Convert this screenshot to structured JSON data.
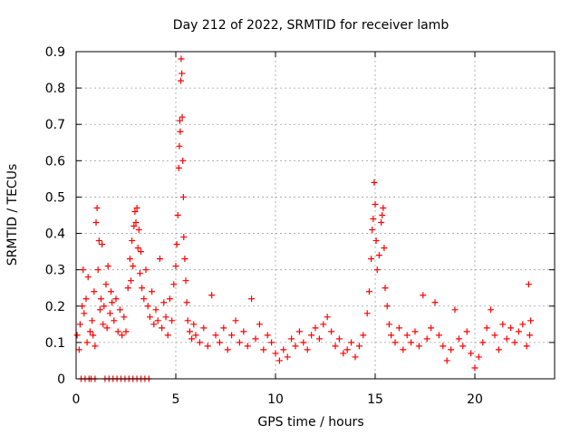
{
  "chart_data": {
    "type": "scatter",
    "title": "Day 212 of 2022, SRMTID for receiver lamb",
    "xlabel": "GPS time / hours",
    "ylabel": "SRMTID / TECUs",
    "xlim": [
      0,
      24
    ],
    "ylim": [
      0,
      0.9
    ],
    "xticks": [
      0,
      5,
      10,
      15,
      20
    ],
    "yticks": [
      0,
      0.1,
      0.2,
      0.3,
      0.4,
      0.5,
      0.6,
      0.7,
      0.8,
      0.9
    ],
    "xtick_labels": [
      "0",
      "5",
      "10",
      "15",
      "20"
    ],
    "ytick_labels": [
      "0",
      "0.1",
      "0.2",
      "0.3",
      "0.4",
      "0.5",
      "0.6",
      "0.7",
      "0.8",
      "0.9"
    ],
    "grid": true,
    "marker": "+",
    "series": [
      {
        "name": "SRMTID",
        "color": "#ff0000",
        "points": [
          [
            0.05,
            0.12
          ],
          [
            0.15,
            0.08
          ],
          [
            0.2,
            0.15
          ],
          [
            0.3,
            0.2
          ],
          [
            0.35,
            0.3
          ],
          [
            0.4,
            0.18
          ],
          [
            0.5,
            0.22
          ],
          [
            0.55,
            0.1
          ],
          [
            0.6,
            0.28
          ],
          [
            0.7,
            0.13
          ],
          [
            0.8,
            0.16
          ],
          [
            0.85,
            0.12
          ],
          [
            0.9,
            0.24
          ],
          [
            0.95,
            0.09
          ],
          [
            1.0,
            0.43
          ],
          [
            1.05,
            0.47
          ],
          [
            1.1,
            0.3
          ],
          [
            1.15,
            0.38
          ],
          [
            1.2,
            0.19
          ],
          [
            1.25,
            0.22
          ],
          [
            1.3,
            0.37
          ],
          [
            1.35,
            0.15
          ],
          [
            1.4,
            0.2
          ],
          [
            1.5,
            0.26
          ],
          [
            1.55,
            0.14
          ],
          [
            1.6,
            0.31
          ],
          [
            1.7,
            0.18
          ],
          [
            1.75,
            0.24
          ],
          [
            1.8,
            0.21
          ],
          [
            1.9,
            0.16
          ],
          [
            2.0,
            0.22
          ],
          [
            2.1,
            0.13
          ],
          [
            2.2,
            0.19
          ],
          [
            2.3,
            0.12
          ],
          [
            2.4,
            0.17
          ],
          [
            2.5,
            0.13
          ],
          [
            2.6,
            0.25
          ],
          [
            2.7,
            0.33
          ],
          [
            2.75,
            0.27
          ],
          [
            2.8,
            0.38
          ],
          [
            2.85,
            0.31
          ],
          [
            2.9,
            0.42
          ],
          [
            2.95,
            0.46
          ],
          [
            3.0,
            0.43
          ],
          [
            3.05,
            0.47
          ],
          [
            3.1,
            0.36
          ],
          [
            3.15,
            0.41
          ],
          [
            3.2,
            0.29
          ],
          [
            3.25,
            0.35
          ],
          [
            3.3,
            0.25
          ],
          [
            3.4,
            0.22
          ],
          [
            3.5,
            0.3
          ],
          [
            3.6,
            0.2
          ],
          [
            3.7,
            0.17
          ],
          [
            3.8,
            0.24
          ],
          [
            3.9,
            0.15
          ],
          [
            4.0,
            0.19
          ],
          [
            4.1,
            0.16
          ],
          [
            4.2,
            0.33
          ],
          [
            4.3,
            0.14
          ],
          [
            4.4,
            0.21
          ],
          [
            4.5,
            0.17
          ],
          [
            4.6,
            0.12
          ],
          [
            4.7,
            0.22
          ],
          [
            4.8,
            0.16
          ],
          [
            4.9,
            0.26
          ],
          [
            5.0,
            0.31
          ],
          [
            5.05,
            0.37
          ],
          [
            5.1,
            0.45
          ],
          [
            5.15,
            0.58
          ],
          [
            5.18,
            0.64
          ],
          [
            5.2,
            0.71
          ],
          [
            5.22,
            0.68
          ],
          [
            5.25,
            0.82
          ],
          [
            5.27,
            0.88
          ],
          [
            5.3,
            0.84
          ],
          [
            5.32,
            0.72
          ],
          [
            5.35,
            0.6
          ],
          [
            5.38,
            0.5
          ],
          [
            5.4,
            0.39
          ],
          [
            5.45,
            0.33
          ],
          [
            5.5,
            0.27
          ],
          [
            5.55,
            0.21
          ],
          [
            5.6,
            0.16
          ],
          [
            5.7,
            0.13
          ],
          [
            5.8,
            0.11
          ],
          [
            5.9,
            0.15
          ],
          [
            6.0,
            0.12
          ],
          [
            6.2,
            0.1
          ],
          [
            6.4,
            0.14
          ],
          [
            6.6,
            0.09
          ],
          [
            6.8,
            0.23
          ],
          [
            7.0,
            0.12
          ],
          [
            7.2,
            0.1
          ],
          [
            7.4,
            0.14
          ],
          [
            7.6,
            0.08
          ],
          [
            7.8,
            0.12
          ],
          [
            8.0,
            0.16
          ],
          [
            8.2,
            0.1
          ],
          [
            8.4,
            0.13
          ],
          [
            8.6,
            0.09
          ],
          [
            8.8,
            0.22
          ],
          [
            9.0,
            0.11
          ],
          [
            9.2,
            0.15
          ],
          [
            9.4,
            0.08
          ],
          [
            9.6,
            0.12
          ],
          [
            9.8,
            0.1
          ],
          [
            10.0,
            0.07
          ],
          [
            10.2,
            0.05
          ],
          [
            10.4,
            0.08
          ],
          [
            10.6,
            0.06
          ],
          [
            10.8,
            0.11
          ],
          [
            11.0,
            0.09
          ],
          [
            11.2,
            0.13
          ],
          [
            11.4,
            0.1
          ],
          [
            11.6,
            0.08
          ],
          [
            11.8,
            0.12
          ],
          [
            12.0,
            0.14
          ],
          [
            12.2,
            0.11
          ],
          [
            12.4,
            0.15
          ],
          [
            12.6,
            0.17
          ],
          [
            12.8,
            0.13
          ],
          [
            13.0,
            0.09
          ],
          [
            13.2,
            0.11
          ],
          [
            13.4,
            0.07
          ],
          [
            13.6,
            0.08
          ],
          [
            13.8,
            0.1
          ],
          [
            14.0,
            0.06
          ],
          [
            14.2,
            0.09
          ],
          [
            14.4,
            0.12
          ],
          [
            14.6,
            0.18
          ],
          [
            14.7,
            0.24
          ],
          [
            14.8,
            0.33
          ],
          [
            14.85,
            0.41
          ],
          [
            14.9,
            0.44
          ],
          [
            14.95,
            0.54
          ],
          [
            15.0,
            0.48
          ],
          [
            15.05,
            0.38
          ],
          [
            15.1,
            0.3
          ],
          [
            15.2,
            0.34
          ],
          [
            15.3,
            0.43
          ],
          [
            15.35,
            0.45
          ],
          [
            15.4,
            0.47
          ],
          [
            15.45,
            0.36
          ],
          [
            15.5,
            0.25
          ],
          [
            15.6,
            0.2
          ],
          [
            15.7,
            0.15
          ],
          [
            15.8,
            0.12
          ],
          [
            16.0,
            0.1
          ],
          [
            16.2,
            0.14
          ],
          [
            16.4,
            0.08
          ],
          [
            16.6,
            0.12
          ],
          [
            16.8,
            0.1
          ],
          [
            17.0,
            0.13
          ],
          [
            17.2,
            0.09
          ],
          [
            17.4,
            0.23
          ],
          [
            17.6,
            0.11
          ],
          [
            17.8,
            0.14
          ],
          [
            18.0,
            0.21
          ],
          [
            18.2,
            0.12
          ],
          [
            18.4,
            0.09
          ],
          [
            18.6,
            0.05
          ],
          [
            18.8,
            0.08
          ],
          [
            19.0,
            0.19
          ],
          [
            19.2,
            0.11
          ],
          [
            19.4,
            0.09
          ],
          [
            19.6,
            0.13
          ],
          [
            19.8,
            0.07
          ],
          [
            20.0,
            0.03
          ],
          [
            20.2,
            0.06
          ],
          [
            20.4,
            0.1
          ],
          [
            20.6,
            0.14
          ],
          [
            20.8,
            0.19
          ],
          [
            21.0,
            0.12
          ],
          [
            21.2,
            0.08
          ],
          [
            21.4,
            0.15
          ],
          [
            21.6,
            0.11
          ],
          [
            21.8,
            0.14
          ],
          [
            22.0,
            0.1
          ],
          [
            22.2,
            0.13
          ],
          [
            22.4,
            0.15
          ],
          [
            22.6,
            0.09
          ],
          [
            22.7,
            0.26
          ],
          [
            22.75,
            0.12
          ],
          [
            22.8,
            0.16
          ],
          [
            0.25,
            0.0
          ],
          [
            0.45,
            0.0
          ],
          [
            0.65,
            0.0
          ],
          [
            0.75,
            0.0
          ],
          [
            0.95,
            0.0
          ],
          [
            1.45,
            0.0
          ],
          [
            1.65,
            0.0
          ],
          [
            1.85,
            0.0
          ],
          [
            2.05,
            0.0
          ],
          [
            2.25,
            0.0
          ],
          [
            2.45,
            0.0
          ],
          [
            2.65,
            0.0
          ],
          [
            2.85,
            0.0
          ],
          [
            3.05,
            0.0
          ],
          [
            3.25,
            0.0
          ],
          [
            3.45,
            0.0
          ],
          [
            3.65,
            0.0
          ]
        ]
      }
    ]
  }
}
